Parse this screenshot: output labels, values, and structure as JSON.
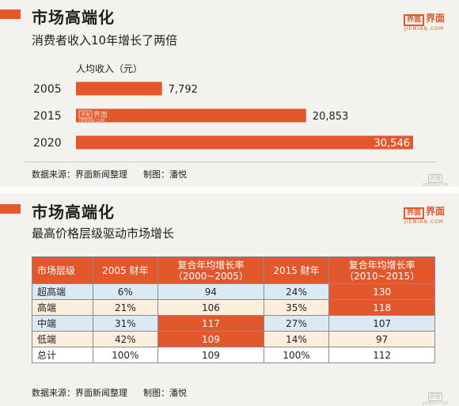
{
  "panel1": {
    "title": "市场高端化",
    "subtitle": "消费者收入10年增长了两倍",
    "logo": {
      "box": "界面",
      "text": "界面",
      "sub": "JIEMIAN.COM"
    },
    "source": "数据来源：界面新闻整理",
    "credit": "制图：潘悦",
    "watermark": {
      "box": "界面",
      "sub": "JIEMIAN.COM"
    }
  },
  "chart_data": {
    "type": "bar",
    "orientation": "horizontal",
    "ylabel": "人均收入（元）",
    "categories": [
      "2005",
      "2015",
      "2020"
    ],
    "values": [
      7792,
      20853,
      30546
    ],
    "value_labels": [
      "7,792",
      "20,853",
      "30,546"
    ],
    "bar_color": "#e2572b",
    "xlim": [
      0,
      30546
    ],
    "grid": false,
    "bar_watermark": {
      "box": "界面",
      "text": "界面",
      "sub": "JIEMIAN.COM"
    }
  },
  "panel2": {
    "title": "市场高端化",
    "subtitle": "最高价格层级驱动市场增长",
    "logo": {
      "box": "界面",
      "text": "界面",
      "sub": "JIEMIAN.COM"
    },
    "source": "数据来源：界面新闻整理",
    "credit": "制图：潘悦",
    "watermark": {
      "box": "界面",
      "sub": "JIEMIAN.COM"
    },
    "table": {
      "headers": [
        [
          "市场层级"
        ],
        [
          "2005 财年"
        ],
        [
          "复合年均增长率",
          "（2000~2005）"
        ],
        [
          "2015 财年"
        ],
        [
          "复合年均增长率",
          "（2010~2015）"
        ]
      ],
      "rows": [
        {
          "cells": [
            "超高端",
            "6%",
            "94",
            "24%",
            "130"
          ]
        },
        {
          "cells": [
            "高端",
            "21%",
            "106",
            "35%",
            "118"
          ]
        },
        {
          "cells": [
            "中端",
            "31%",
            "117",
            "27%",
            "107"
          ]
        },
        {
          "cells": [
            "低端",
            "42%",
            "109",
            "14%",
            "97"
          ]
        },
        {
          "cells": [
            "总计",
            "100%",
            "109",
            "100%",
            "112"
          ]
        }
      ],
      "highlight_color": "#e2572b",
      "row_colors": [
        "#dbe9f3",
        "#fbeedd",
        "#dbe9f3",
        "#fbeedd",
        "#ffffff"
      ]
    }
  }
}
